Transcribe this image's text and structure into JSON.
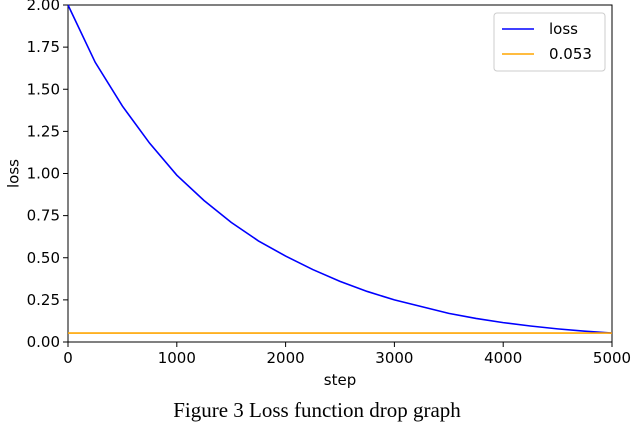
{
  "caption": "Figure 3 Loss function drop graph",
  "chart_data": {
    "type": "line",
    "title": "",
    "xlabel": "step",
    "ylabel": "loss",
    "xlim": [
      0,
      5000
    ],
    "ylim": [
      0.0,
      2.0
    ],
    "xticks": [
      0,
      1000,
      2000,
      3000,
      4000,
      5000
    ],
    "xtick_labels": [
      "0",
      "1000",
      "2000",
      "3000",
      "4000",
      "5000"
    ],
    "yticks": [
      0.0,
      0.25,
      0.5,
      0.75,
      1.0,
      1.25,
      1.5,
      1.75,
      2.0
    ],
    "ytick_labels": [
      "0.00",
      "0.25",
      "0.50",
      "0.75",
      "1.00",
      "1.25",
      "1.50",
      "1.75",
      "2.00"
    ],
    "grid": false,
    "legend_position": "top-right",
    "series": [
      {
        "name": "loss",
        "color": "#0000ff",
        "x": [
          0,
          250,
          500,
          750,
          1000,
          1250,
          1500,
          1750,
          2000,
          2250,
          2500,
          2750,
          3000,
          3250,
          3500,
          3750,
          4000,
          4250,
          4500,
          4750,
          5000
        ],
        "y": [
          2.0,
          1.66,
          1.4,
          1.18,
          0.99,
          0.84,
          0.71,
          0.6,
          0.51,
          0.43,
          0.36,
          0.3,
          0.25,
          0.21,
          0.17,
          0.14,
          0.115,
          0.095,
          0.078,
          0.064,
          0.053
        ]
      },
      {
        "name": "0.053",
        "color": "#ffa500",
        "x": [
          0,
          5000
        ],
        "y": [
          0.053,
          0.053
        ]
      }
    ]
  }
}
